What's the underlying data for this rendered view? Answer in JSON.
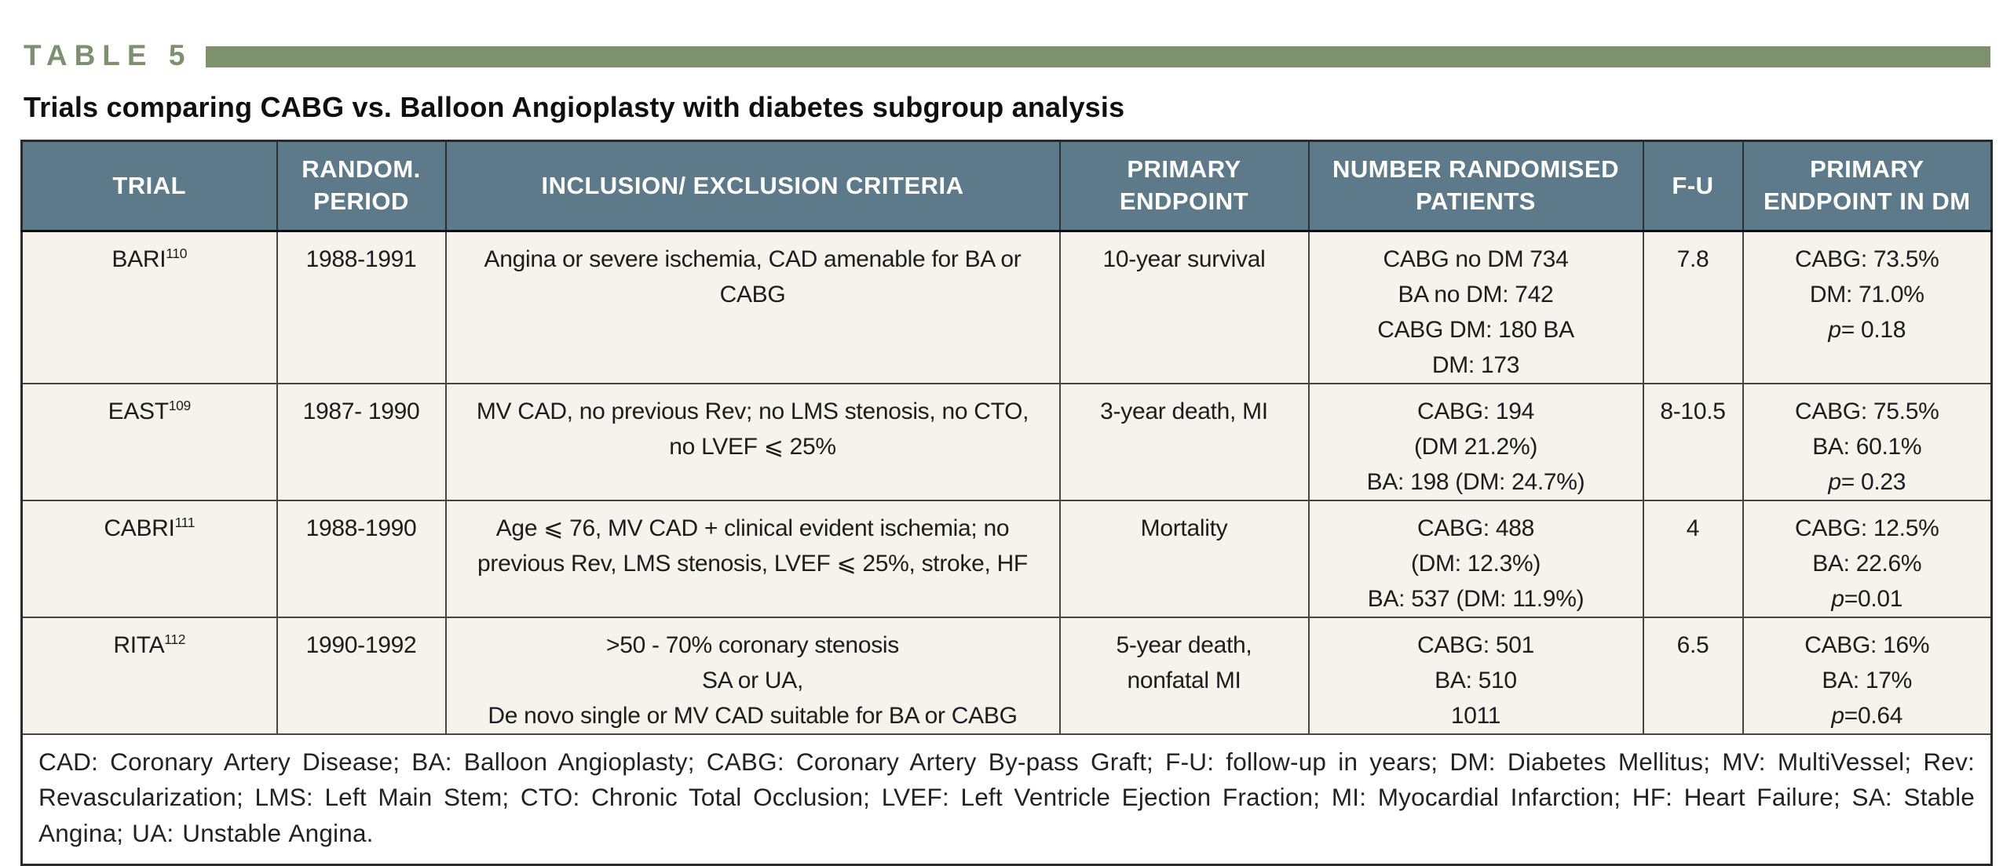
{
  "caption": {
    "label": "TABLE 5",
    "title": "Trials comparing CABG vs. Balloon Angioplasty with diabetes subgroup analysis"
  },
  "colors": {
    "accent_green": "#7d916f",
    "header_slate": "#5d7a8a",
    "cell_cream": "#f5f3ec"
  },
  "table": {
    "headers": [
      "TRIAL",
      "RANDOM.\nPERIOD",
      "INCLUSION/ EXCLUSION CRITERIA",
      "PRIMARY\nENDPOINT",
      "NUMBER RANDOMISED\nPATIENTS",
      "F-U",
      "PRIMARY\nENDPOINT IN DM"
    ],
    "rows": [
      {
        "trial": "BARI",
        "ref": "110",
        "period": "1988-1991",
        "criteria": "Angina or severe ischemia, CAD amenable for BA or\nCABG",
        "endpoint": "10-year survival",
        "randomised": "CABG no DM 734\nBA no DM: 742\nCABG DM: 180 BA\nDM: 173",
        "fu": "7.8",
        "endpoint_dm": "CABG: 73.5%\nDM: 71.0%\np= 0.18"
      },
      {
        "trial": "EAST",
        "ref": "109",
        "period": "1987- 1990",
        "criteria": "MV CAD, no previous Rev; no LMS stenosis, no CTO,\nno LVEF ⩽ 25%",
        "endpoint": "3-year death, MI",
        "randomised": "CABG: 194\n(DM 21.2%)\nBA: 198 (DM: 24.7%)",
        "fu": "8-10.5",
        "endpoint_dm": "CABG: 75.5%\nBA: 60.1%\np= 0.23"
      },
      {
        "trial": "CABRI",
        "ref": "111",
        "period": "1988-1990",
        "criteria": "Age ⩽ 76, MV CAD + clinical evident ischemia; no\nprevious Rev, LMS stenosis, LVEF ⩽ 25%, stroke, HF",
        "endpoint": "Mortality",
        "randomised": "CABG: 488\n(DM: 12.3%)\nBA: 537 (DM: 11.9%)",
        "fu": "4",
        "endpoint_dm": "CABG: 12.5%\nBA: 22.6%\np=0.01"
      },
      {
        "trial": "RITA",
        "ref": "112",
        "period": "1990-1992",
        "criteria": ">50 - 70% coronary stenosis\nSA or UA,\nDe novo single or MV CAD suitable for BA or CABG",
        "endpoint": "5-year death,\nnonfatal MI",
        "randomised": "CABG: 501\nBA: 510\n1011",
        "fu": "6.5",
        "endpoint_dm": "CABG: 16%\nBA: 17%\np=0.64"
      }
    ],
    "footnote": "CAD: Coronary Artery Disease; BA: Balloon Angioplasty; CABG: Coronary Artery By-pass Graft; F-U: follow-up in years; DM: Diabetes Mellitus; MV: MultiVessel; Rev: Revascularization; LMS: Left Main Stem; CTO: Chronic Total Occlusion; LVEF: Left Ventricle Ejection Fraction; MI: Myocardial Infarction; HF: Heart Failure; SA: Stable Angina; UA: Unstable Angina."
  }
}
